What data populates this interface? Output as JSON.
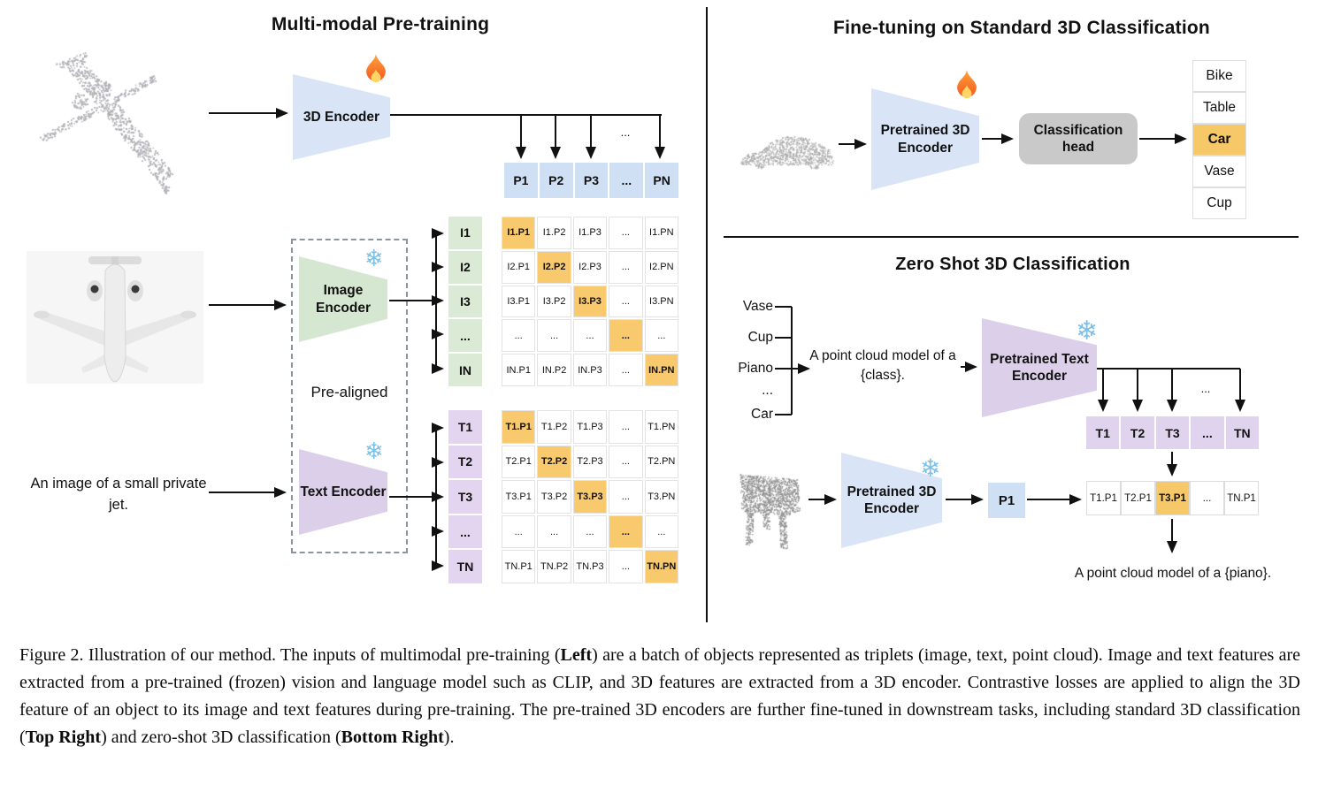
{
  "left": {
    "title": "Multi-modal Pre-training",
    "encoder3d_label": "3D Encoder",
    "p_row": [
      "P1",
      "P2",
      "P3",
      "...",
      "PN"
    ],
    "ellipsis": "...",
    "prealigned_label": "Pre-aligned",
    "image_encoder_label": "Image Encoder",
    "text_encoder_label": "Text Encoder",
    "input_caption": "An image of a small private jet.",
    "i_labels": [
      "I1",
      "I2",
      "I3",
      "...",
      "IN"
    ],
    "i_matrix": [
      [
        "I1.P1",
        "I1.P2",
        "I1.P3",
        "...",
        "I1.PN"
      ],
      [
        "I2.P1",
        "I2.P2",
        "I2.P3",
        "...",
        "I2.PN"
      ],
      [
        "I3.P1",
        "I3.P2",
        "I3.P3",
        "...",
        "I3.PN"
      ],
      [
        "...",
        "...",
        "...",
        "...",
        "..."
      ],
      [
        "IN.P1",
        "IN.P2",
        "IN.P3",
        "...",
        "IN.PN"
      ]
    ],
    "t_labels": [
      "T1",
      "T2",
      "T3",
      "...",
      "TN"
    ],
    "t_matrix": [
      [
        "T1.P1",
        "T1.P2",
        "T1.P3",
        "...",
        "T1.PN"
      ],
      [
        "T2.P1",
        "T2.P2",
        "T2.P3",
        "...",
        "T2.PN"
      ],
      [
        "T3.P1",
        "T3.P2",
        "T3.P3",
        "...",
        "T3.PN"
      ],
      [
        "...",
        "...",
        "...",
        "...",
        "..."
      ],
      [
        "TN.P1",
        "TN.P2",
        "TN.P3",
        "...",
        "TN.PN"
      ]
    ]
  },
  "top_right": {
    "title": "Fine-tuning on Standard 3D Classification",
    "encoder_label": "Pretrained 3D Encoder",
    "head_label": "Classification head",
    "classes": [
      "Bike",
      "Table",
      "Car",
      "Vase",
      "Cup"
    ],
    "highlighted_class": "Car"
  },
  "bottom_right": {
    "title": "Zero Shot 3D Classification",
    "prompt_classes": [
      "Vase",
      "Cup",
      "Piano",
      "...",
      "Car"
    ],
    "prompt_text": "A point cloud model of a {class}.",
    "text_encoder_label": "Pretrained Text Encoder",
    "t_row": [
      "T1",
      "T2",
      "T3",
      "...",
      "TN"
    ],
    "ellipsis": "...",
    "encoder3d_label": "Pretrained 3D Encoder",
    "p_box": "P1",
    "sim_row": [
      "T1.P1",
      "T2.P1",
      "T3.P1",
      "...",
      "TN.P1"
    ],
    "highlighted_cell": "T3.P1",
    "output_text": "A point cloud model of a {piano}."
  },
  "caption": {
    "segments": [
      {
        "text": "Figure 2. Illustration of our method. The inputs of multimodal pre-training (",
        "bold": false
      },
      {
        "text": "Left",
        "bold": true
      },
      {
        "text": ") are a batch of objects represented as triplets (image, text, point cloud). Image and text features are extracted from a pre-trained (frozen) vision and language model such as CLIP, and 3D features are extracted from a 3D encoder. Contrastive losses are applied to align the 3D feature of an object to its image and text features during pre-training. The pre-trained 3D encoders are further fine-tuned in downstream tasks, including standard 3D classification (",
        "bold": false
      },
      {
        "text": "Top Right",
        "bold": true
      },
      {
        "text": ") and zero-shot 3D classification (",
        "bold": false
      },
      {
        "text": "Bottom Right",
        "bold": true
      },
      {
        "text": ").",
        "bold": false
      }
    ]
  },
  "icons": {
    "snowflake_glyph": "❄",
    "flame_icon": "flame-icon",
    "snowflake_icon": "snowflake-icon"
  },
  "colors": {
    "encoder_blue": "#d9e5f7",
    "cell_blue": "#cfe0f5",
    "encoder_green": "#d6e7d1",
    "cell_green": "#daead5",
    "encoder_purple": "#dccfe9",
    "cell_purple": "#e3d5ef",
    "highlight_orange": "#f6c868",
    "head_gray": "#c9c9c9"
  }
}
